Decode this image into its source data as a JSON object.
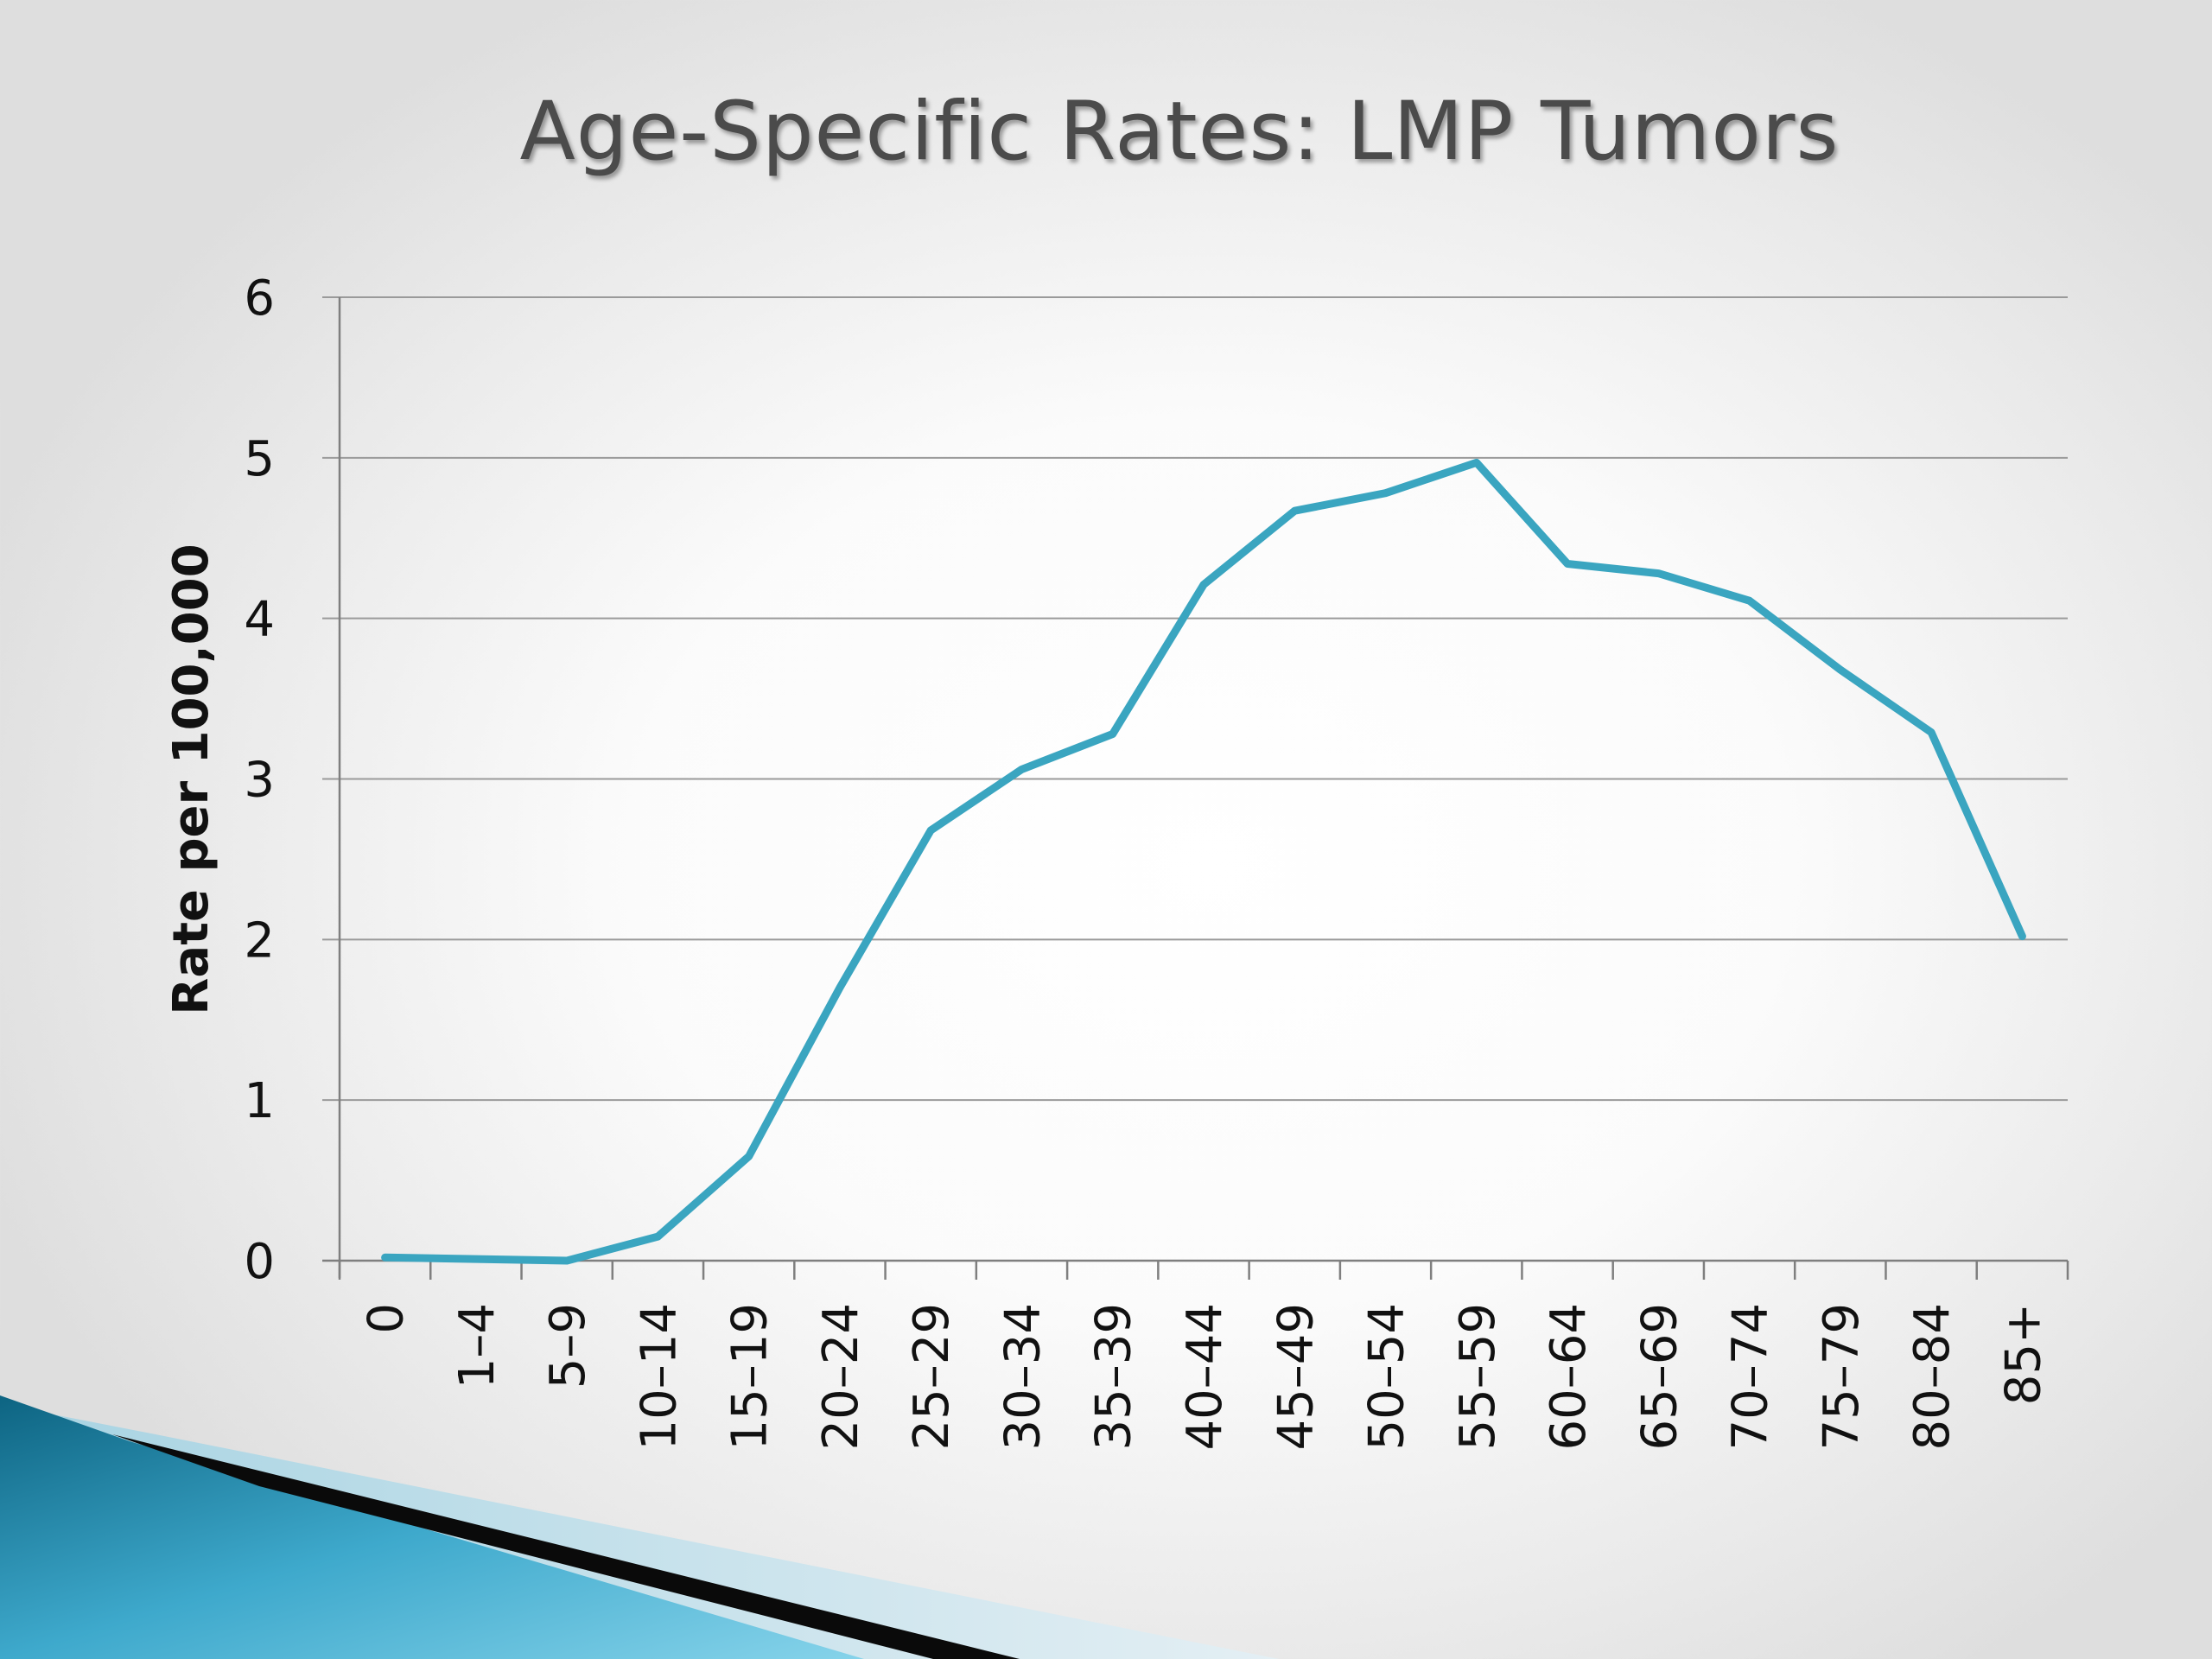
{
  "slide": {
    "title": "Age-Specific Rates: LMP Tumors"
  },
  "chart_data": {
    "type": "line",
    "title": "",
    "xlabel": "",
    "ylabel": "Rate per 100,000",
    "ylim": [
      0,
      6
    ],
    "yticks": [
      "0",
      "1",
      "2",
      "3",
      "4",
      "5",
      "6"
    ],
    "grid": true,
    "legend": "none",
    "categories": [
      "0",
      "1–4",
      "5–9",
      "10–14",
      "15–19",
      "20–24",
      "25–29",
      "30–34",
      "35–39",
      "40–44",
      "45–49",
      "50–54",
      "55–59",
      "60–64",
      "65–69",
      "70–74",
      "75–79",
      "80–84",
      "85+"
    ],
    "series": [
      {
        "color": "#3aa5c0",
        "values": [
          0.02,
          0.01,
          0.0,
          0.15,
          0.65,
          1.7,
          2.68,
          3.06,
          3.28,
          4.21,
          4.67,
          4.78,
          4.97,
          4.34,
          4.28,
          4.11,
          3.68,
          3.29,
          2.02
        ]
      }
    ]
  },
  "decor": {
    "accent_dark": "#0f6f8f",
    "accent_light": "#5bc0de",
    "gridline_color": "#9a9a9a",
    "axis_color": "#7f7f7f"
  }
}
